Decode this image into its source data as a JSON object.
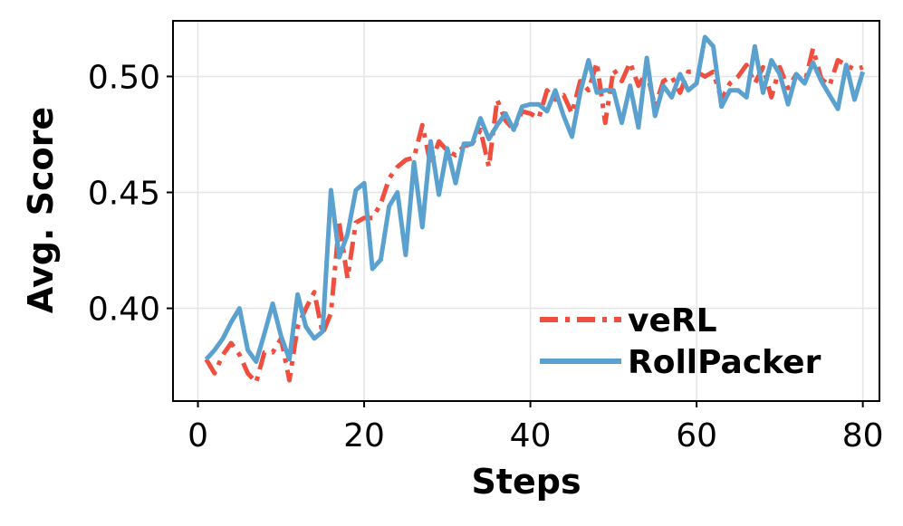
{
  "chart_data": {
    "type": "line",
    "title": "",
    "xlabel": "Steps",
    "ylabel": "Avg. Score",
    "xlim": [
      -3,
      82
    ],
    "ylim": [
      0.36,
      0.524
    ],
    "xticks": [
      0,
      20,
      40,
      60,
      80
    ],
    "xtick_labels": [
      "0",
      "20",
      "40",
      "60",
      "80"
    ],
    "yticks": [
      0.4,
      0.45,
      0.5
    ],
    "ytick_labels": [
      "0.40",
      "0.45",
      "0.50"
    ],
    "grid": true,
    "legend_position": "lower-right",
    "series": [
      {
        "name": "veRL",
        "color": "#f04e3e",
        "style": "dashdot",
        "x": [
          1,
          2,
          3,
          4,
          5,
          6,
          7,
          8,
          9,
          10,
          11,
          12,
          13,
          14,
          15,
          16,
          17,
          18,
          19,
          20,
          21,
          22,
          23,
          24,
          25,
          26,
          27,
          28,
          29,
          30,
          31,
          32,
          33,
          34,
          35,
          36,
          37,
          38,
          39,
          40,
          41,
          42,
          43,
          44,
          45,
          46,
          47,
          48,
          49,
          50,
          51,
          52,
          53,
          54,
          55,
          56,
          57,
          58,
          59,
          60,
          61,
          62,
          63,
          64,
          65,
          66,
          67,
          68,
          69,
          70,
          71,
          72,
          73,
          74,
          75,
          76,
          77,
          78,
          79,
          80
        ],
        "y": [
          0.378,
          0.372,
          0.38,
          0.385,
          0.38,
          0.372,
          0.368,
          0.381,
          0.381,
          0.387,
          0.369,
          0.392,
          0.4,
          0.407,
          0.389,
          0.398,
          0.437,
          0.413,
          0.437,
          0.439,
          0.439,
          0.445,
          0.456,
          0.461,
          0.464,
          0.465,
          0.479,
          0.462,
          0.472,
          0.468,
          0.466,
          0.47,
          0.471,
          0.477,
          0.461,
          0.49,
          0.481,
          0.477,
          0.485,
          0.484,
          0.482,
          0.494,
          0.49,
          0.492,
          0.484,
          0.498,
          0.494,
          0.506,
          0.48,
          0.503,
          0.498,
          0.506,
          0.496,
          0.502,
          0.487,
          0.498,
          0.5,
          0.493,
          0.502,
          0.502,
          0.5,
          0.502,
          0.49,
          0.497,
          0.5,
          0.505,
          0.497,
          0.504,
          0.491,
          0.504,
          0.495,
          0.501,
          0.497,
          0.512,
          0.499,
          0.496,
          0.507,
          0.505,
          0.503,
          0.504
        ]
      },
      {
        "name": "RollPacker",
        "color": "#5aa1cf",
        "style": "solid",
        "x": [
          1,
          2,
          3,
          4,
          5,
          6,
          7,
          8,
          9,
          10,
          11,
          12,
          13,
          14,
          15,
          16,
          17,
          18,
          19,
          20,
          21,
          22,
          23,
          24,
          25,
          26,
          27,
          28,
          29,
          30,
          31,
          32,
          33,
          34,
          35,
          36,
          37,
          38,
          39,
          40,
          41,
          42,
          43,
          44,
          45,
          46,
          47,
          48,
          49,
          50,
          51,
          52,
          53,
          54,
          55,
          56,
          57,
          58,
          59,
          60,
          61,
          62,
          63,
          64,
          65,
          66,
          67,
          68,
          69,
          70,
          71,
          72,
          73,
          74,
          75,
          76,
          77,
          78,
          79,
          80
        ],
        "y": [
          0.378,
          0.382,
          0.387,
          0.394,
          0.4,
          0.382,
          0.377,
          0.389,
          0.402,
          0.388,
          0.378,
          0.406,
          0.392,
          0.387,
          0.39,
          0.451,
          0.422,
          0.432,
          0.451,
          0.454,
          0.417,
          0.421,
          0.444,
          0.45,
          0.423,
          0.463,
          0.435,
          0.472,
          0.449,
          0.469,
          0.454,
          0.471,
          0.471,
          0.482,
          0.473,
          0.479,
          0.484,
          0.477,
          0.487,
          0.488,
          0.488,
          0.485,
          0.494,
          0.483,
          0.474,
          0.493,
          0.507,
          0.493,
          0.494,
          0.494,
          0.48,
          0.496,
          0.478,
          0.508,
          0.483,
          0.496,
          0.491,
          0.501,
          0.494,
          0.497,
          0.517,
          0.513,
          0.487,
          0.494,
          0.494,
          0.491,
          0.513,
          0.493,
          0.507,
          0.501,
          0.488,
          0.501,
          0.497,
          0.506,
          0.498,
          0.492,
          0.486,
          0.505,
          0.49,
          0.502
        ]
      }
    ]
  }
}
